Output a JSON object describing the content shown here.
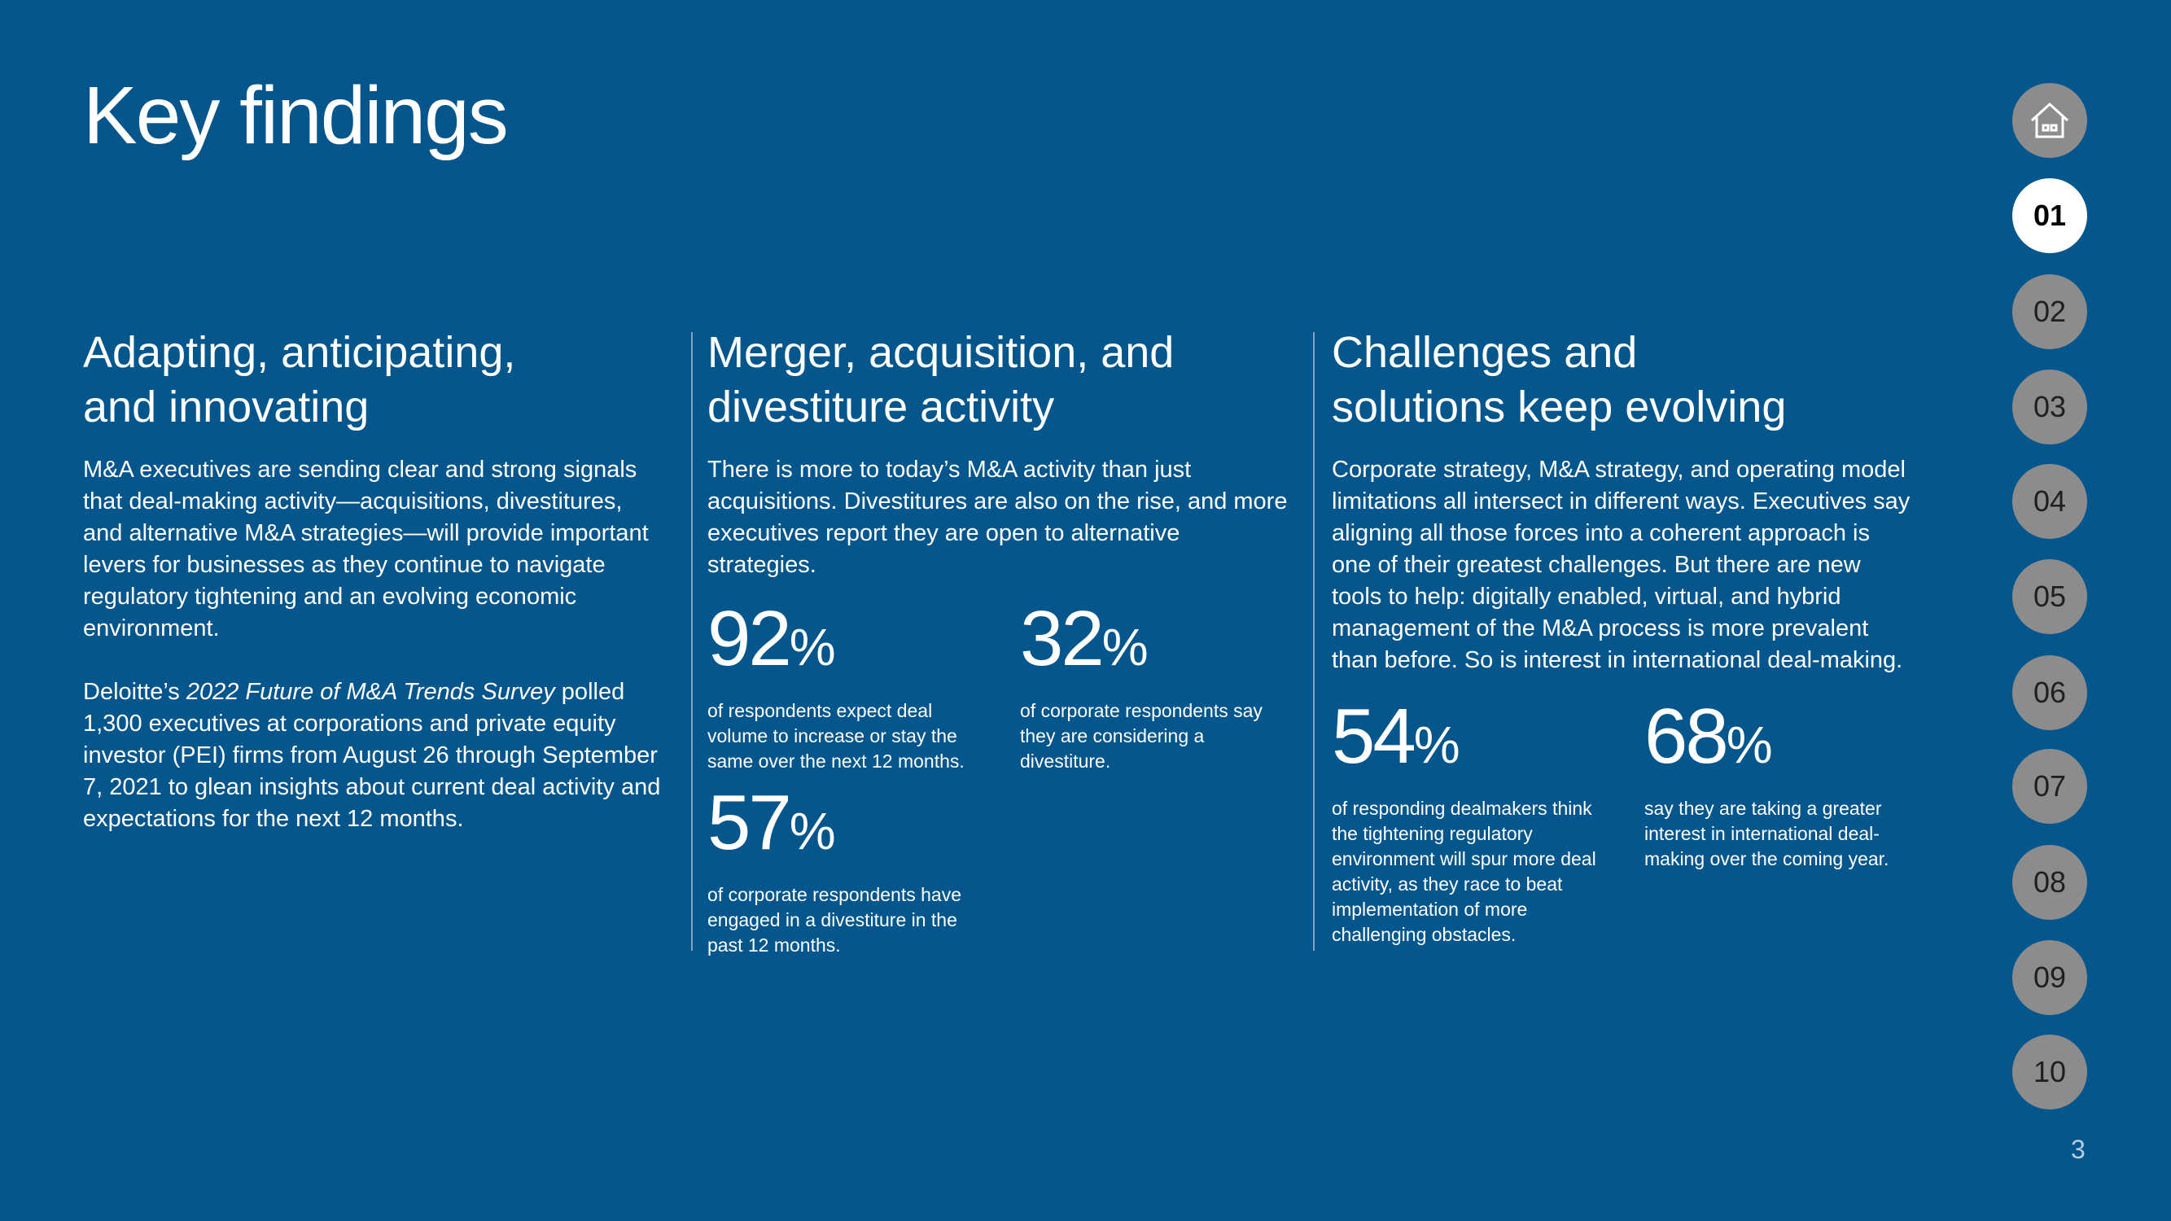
{
  "header": {
    "title": "Key findings"
  },
  "columns": [
    {
      "heading": [
        "Adapting, anticipating,",
        "and innovating"
      ],
      "paragraphs": [
        {
          "parts": [
            "M&A executives are sending clear and strong signals that deal-making activity—acquisitions, divestitures, and alternative M&A strategies—will provide important levers for businesses as they continue to navigate regulatory tightening and an evolving economic environment."
          ]
        },
        {
          "parts": [
            "Deloitte’s ",
            "2022 Future of M&A Trends Survey",
            " polled 1,300 executives at corporations and private equity investor (PEI) firms from August 26 through September 7, 2021 to glean insights about current deal activity and expectations for the next 12 months."
          ]
        }
      ],
      "stats": []
    },
    {
      "heading": [
        "Merger, acquisition, and",
        "divestiture activity"
      ],
      "paragraphs": [
        {
          "parts": [
            "There is more to today’s M&A activity than just acquisitions. Divestitures are also on the rise, and more executives report they are open to alternative strategies."
          ]
        }
      ],
      "stats": [
        {
          "number": "92",
          "unit": "%",
          "text": "of respondents expect deal volume to increase or stay the same over the next 12 months."
        },
        {
          "number": "32",
          "unit": "%",
          "text": "of corporate respondents say they are considering a divestiture."
        },
        {
          "number": "57",
          "unit": "%",
          "text": "of corporate respondents have engaged in a divestiture in the past 12 months."
        }
      ]
    },
    {
      "heading": [
        "Challenges and",
        "solutions keep evolving"
      ],
      "paragraphs": [
        {
          "parts": [
            "Corporate strategy, M&A strategy, and operating model limitations all intersect in different ways. Executives say aligning all those forces into a coherent approach is one of their greatest challenges. But there are new tools to help: digitally enabled, virtual, and hybrid management of the M&A process is more prevalent than before. So is interest in international deal-making."
          ]
        }
      ],
      "stats": [
        {
          "number": "54",
          "unit": "%",
          "text": "of responding dealmakers think the tightening regulatory environment will spur more deal activity, as they race to beat implementation of more challenging obstacles."
        },
        {
          "number": "68",
          "unit": "%",
          "text": "say they are taking a greater interest in international deal-making over the coming year."
        }
      ]
    }
  ],
  "nav": {
    "items": [
      "01",
      "02",
      "03",
      "04",
      "05",
      "06",
      "07",
      "08",
      "09",
      "10"
    ]
  },
  "footer": {
    "page": "3"
  }
}
